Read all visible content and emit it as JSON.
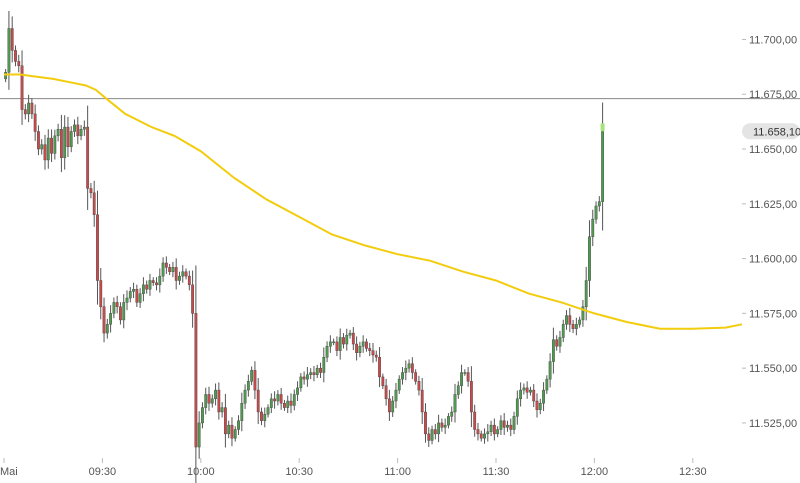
{
  "chart_data": {
    "type": "candlestick",
    "y_ticks": [
      {
        "value": 11700,
        "label": "11.700,00"
      },
      {
        "value": 11675,
        "label": "11.675,00"
      },
      {
        "value": 11650,
        "label": "11.650,00"
      },
      {
        "value": 11625,
        "label": "11.625,00"
      },
      {
        "value": 11600,
        "label": "11.600,00"
      },
      {
        "value": 11575,
        "label": "11.575,00"
      },
      {
        "value": 11550,
        "label": "11.550,00"
      },
      {
        "value": 11525,
        "label": "11.525,00"
      }
    ],
    "x_ticks": [
      {
        "time": "09:00",
        "label": "Mai"
      },
      {
        "time": "09:30",
        "label": "09:30"
      },
      {
        "time": "10:00",
        "label": "10:00"
      },
      {
        "time": "10:30",
        "label": "10:30"
      },
      {
        "time": "11:00",
        "label": "11:00"
      },
      {
        "time": "11:30",
        "label": "11:30"
      },
      {
        "time": "12:00",
        "label": "12:00"
      },
      {
        "time": "12:30",
        "label": "12:30"
      }
    ],
    "ylim": [
      11509,
      11718
    ],
    "xlim_minutes": [
      0,
      225
    ],
    "interval_minutes": 1,
    "close_series": [
      11685,
      11705,
      11695,
      11690,
      11688,
      11668,
      11666,
      11671,
      11666,
      11658,
      11650,
      11652,
      11645,
      11655,
      11648,
      11656,
      11659,
      11646,
      11660,
      11651,
      11658,
      11661,
      11656,
      11659,
      11660,
      11632,
      11630,
      11620,
      11590,
      11578,
      11566,
      11570,
      11575,
      11580,
      11578,
      11572,
      11580,
      11582,
      11585,
      11586,
      11580,
      11584,
      11588,
      11586,
      11590,
      11589,
      11588,
      11592,
      11598,
      11596,
      11594,
      11596,
      11590,
      11592,
      11594,
      11592,
      11588,
      11575,
      11514,
      11525,
      11532,
      11538,
      11534,
      11536,
      11540,
      11530,
      11532,
      11520,
      11524,
      11518,
      11522,
      11526,
      11534,
      11540,
      11544,
      11549,
      11540,
      11530,
      11526,
      11529,
      11532,
      11536,
      11535,
      11538,
      11534,
      11532,
      11535,
      11533,
      11538,
      11541,
      11546,
      11545,
      11547,
      11548,
      11547,
      11550,
      11548,
      11555,
      11560,
      11562,
      11562,
      11558,
      11564,
      11561,
      11565,
      11566,
      11561,
      11557,
      11560,
      11562,
      11559,
      11558,
      11556,
      11555,
      11546,
      11542,
      11536,
      11530,
      11535,
      11540,
      11545,
      11548,
      11550,
      11552,
      11548,
      11544,
      11540,
      11530,
      11520,
      11517,
      11522,
      11520,
      11525,
      11523,
      11524,
      11528,
      11530,
      11538,
      11542,
      11548,
      11548,
      11544,
      11530,
      11522,
      11520,
      11518,
      11520,
      11521,
      11524,
      11520,
      11522,
      11526,
      11523,
      11524,
      11522,
      11528,
      11536,
      11540,
      11541,
      11539,
      11540,
      11535,
      11531,
      11534,
      11540,
      11545,
      11553,
      11563,
      11560,
      11564,
      11570,
      11574,
      11570,
      11568,
      11570,
      11572,
      11578,
      11590,
      11610,
      11618,
      11624,
      11626,
      11658
    ],
    "series": [
      {
        "name": "",
        "type": "moving_average",
        "color": "#f2cc0d",
        "points": [
          {
            "t": 0,
            "v": 11684
          },
          {
            "t": 5,
            "v": 11684
          },
          {
            "t": 10,
            "v": 11683
          },
          {
            "t": 15,
            "v": 11682
          },
          {
            "t": 20,
            "v": 11680.5
          },
          {
            "t": 25,
            "v": 11679
          },
          {
            "t": 28,
            "v": 11677
          },
          {
            "t": 32,
            "v": 11672
          },
          {
            "t": 37,
            "v": 11666
          },
          {
            "t": 45,
            "v": 11660
          },
          {
            "t": 52,
            "v": 11656
          },
          {
            "t": 60,
            "v": 11649
          },
          {
            "t": 70,
            "v": 11637
          },
          {
            "t": 80,
            "v": 11627
          },
          {
            "t": 90,
            "v": 11619
          },
          {
            "t": 100,
            "v": 11611
          },
          {
            "t": 110,
            "v": 11606
          },
          {
            "t": 120,
            "v": 11602
          },
          {
            "t": 130,
            "v": 11599
          },
          {
            "t": 140,
            "v": 11594
          },
          {
            "t": 150,
            "v": 11590
          },
          {
            "t": 160,
            "v": 11584
          },
          {
            "t": 170,
            "v": 11580
          },
          {
            "t": 180,
            "v": 11575
          },
          {
            "t": 190,
            "v": 11571
          },
          {
            "t": 200,
            "v": 11568
          },
          {
            "t": 210,
            "v": 11568
          },
          {
            "t": 220,
            "v": 11568.5
          },
          {
            "t": 225,
            "v": 11570
          }
        ]
      }
    ],
    "reference_line": {
      "value": 11673,
      "color": "#888888"
    },
    "last_price": {
      "value": 11658.1,
      "label": "11.658,10"
    },
    "colors": {
      "up": "#4f9a4f",
      "down": "#c94a4a",
      "ma": "#f2cc0d",
      "grid": "#dddddd"
    }
  }
}
